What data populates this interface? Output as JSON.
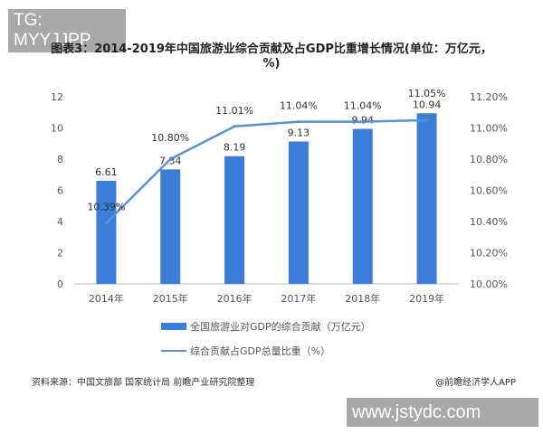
{
  "watermarks": {
    "top_left": "TG: MYYJJPP",
    "bottom_right": "www.jstydc.com"
  },
  "source": "资料来源：中国文旅部 国家统计局 前瞻产业研究院整理",
  "credit": "@前瞻经济学人APP",
  "chart_data": {
    "type": "bar",
    "title": "图表3：2014-2019年中国旅游业综合贡献及占GDP比重增长情况(单位：万亿元，%)",
    "categories": [
      "2014年",
      "2015年",
      "2016年",
      "2017年",
      "2018年",
      "2019年"
    ],
    "series": [
      {
        "name": "全国旅游业对GDP的综合贡献（万亿元）",
        "type": "bar",
        "axis": "left",
        "color": "#3b7dd8",
        "values": [
          6.61,
          7.34,
          8.19,
          9.13,
          9.94,
          10.94
        ],
        "labels": [
          "6.61",
          "7.34",
          "8.19",
          "9.13",
          "9.94",
          "10.94"
        ]
      },
      {
        "name": "综合贡献占GDP总量比重（%）",
        "type": "line",
        "axis": "right",
        "color": "#5b8fd6",
        "values": [
          10.39,
          10.8,
          11.01,
          11.04,
          11.04,
          11.05
        ],
        "labels": [
          "10.39%",
          "10.80%",
          "11.01%",
          "11.04%",
          "11.04%",
          "11.05%"
        ]
      }
    ],
    "left_axis": {
      "range": [
        0,
        12
      ],
      "ticks": [
        "0",
        "2",
        "4",
        "6",
        "8",
        "10",
        "12"
      ]
    },
    "right_axis": {
      "range": [
        10.0,
        11.2
      ],
      "ticks": [
        "10.00%",
        "10.20%",
        "10.40%",
        "10.60%",
        "10.80%",
        "11.00%",
        "11.20%"
      ]
    },
    "legend_position": "bottom",
    "grid": false
  }
}
